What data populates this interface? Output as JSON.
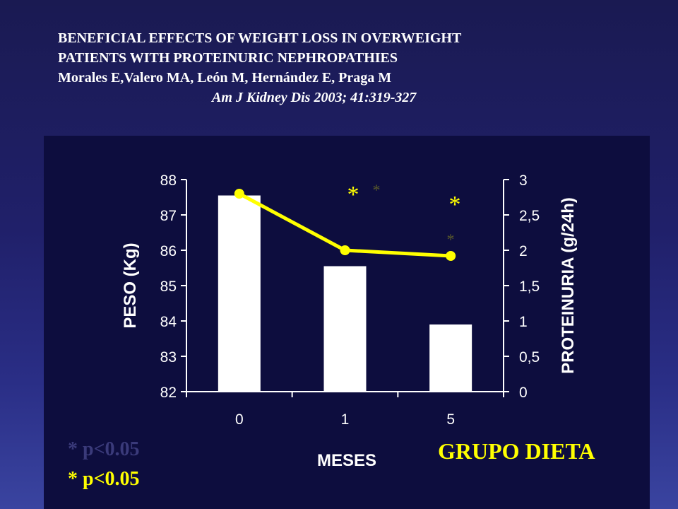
{
  "header": {
    "title_line1": "BENEFICIAL EFFECTS OF WEIGHT  LOSS  IN OVERWEIGHT",
    "title_line2": "PATIENTS WITH PROTEINURIC NEPHROPATHIES",
    "authors": "Morales E,Valero MA, León M, Hernández E, Praga M",
    "citation": "Am J Kidney Dis 2003; 41:319-327"
  },
  "chart_data": {
    "type": "bar",
    "categories": [
      "0",
      "1",
      "5"
    ],
    "xlabel": "MESES",
    "ylabel": "PESO (Kg)",
    "y2label": "PROTEINURIA (g/24h)",
    "ylim": [
      82,
      88
    ],
    "y2lim": [
      0,
      3
    ],
    "yticks": [
      "82",
      "83",
      "84",
      "85",
      "86",
      "87",
      "88"
    ],
    "y2ticks": [
      "0",
      "0,5",
      "1",
      "1,5",
      "2",
      "2,5",
      "3"
    ],
    "series": [
      {
        "type": "bar",
        "axis": "left",
        "values": [
          87.55,
          85.55,
          83.9
        ],
        "color": "#ffffff"
      },
      {
        "type": "line",
        "axis": "right",
        "values": [
          2.8,
          2.0,
          1.92
        ],
        "color": "#ffff00"
      }
    ],
    "significance_markers": [
      "*",
      "*"
    ]
  },
  "notes": {
    "p_value_1": "* p<0.05",
    "p_value_2": "* p<0.05"
  },
  "group_label": "GRUPO DIETA"
}
